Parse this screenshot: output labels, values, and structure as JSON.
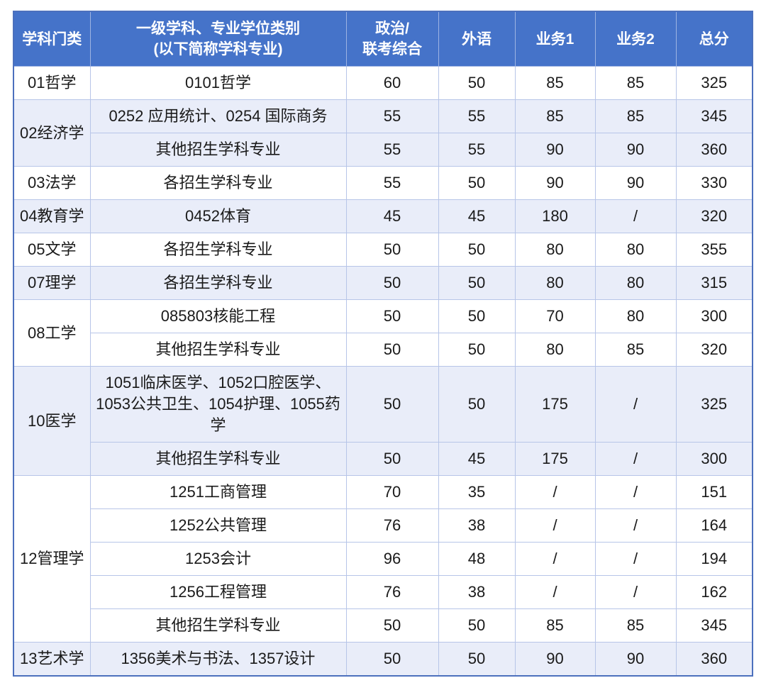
{
  "table": {
    "columns": [
      {
        "key": "category",
        "label": "学科门类"
      },
      {
        "key": "major",
        "label": "一级学科、专业学位类别\n(以下简称学科专业)"
      },
      {
        "key": "politics",
        "label": "政治/\n联考综合"
      },
      {
        "key": "foreign_language",
        "label": "外语"
      },
      {
        "key": "business1",
        "label": "业务1"
      },
      {
        "key": "business2",
        "label": "业务2"
      },
      {
        "key": "total",
        "label": "总分"
      }
    ],
    "groups": [
      {
        "category": "01哲学",
        "rows": [
          {
            "major": "0101哲学",
            "scores": [
              "60",
              "50",
              "85",
              "85",
              "325"
            ]
          }
        ]
      },
      {
        "category": "02经济学",
        "rows": [
          {
            "major": "0252 应用统计、0254 国际商务",
            "scores": [
              "55",
              "55",
              "85",
              "85",
              "345"
            ]
          },
          {
            "major": "其他招生学科专业",
            "scores": [
              "55",
              "55",
              "90",
              "90",
              "360"
            ]
          }
        ]
      },
      {
        "category": "03法学",
        "rows": [
          {
            "major": "各招生学科专业",
            "scores": [
              "55",
              "50",
              "90",
              "90",
              "330"
            ]
          }
        ]
      },
      {
        "category": "04教育学",
        "rows": [
          {
            "major": "0452体育",
            "scores": [
              "45",
              "45",
              "180",
              "/",
              "320"
            ]
          }
        ]
      },
      {
        "category": "05文学",
        "rows": [
          {
            "major": "各招生学科专业",
            "scores": [
              "50",
              "50",
              "80",
              "80",
              "355"
            ]
          }
        ]
      },
      {
        "category": "07理学",
        "rows": [
          {
            "major": "各招生学科专业",
            "scores": [
              "50",
              "50",
              "80",
              "80",
              "315"
            ]
          }
        ]
      },
      {
        "category": "08工学",
        "rows": [
          {
            "major": "085803核能工程",
            "scores": [
              "50",
              "50",
              "70",
              "80",
              "300"
            ]
          },
          {
            "major": "其他招生学科专业",
            "scores": [
              "50",
              "50",
              "80",
              "85",
              "320"
            ]
          }
        ]
      },
      {
        "category": "10医学",
        "rows": [
          {
            "major": "1051临床医学、1052口腔医学、1053公共卫生、1054护理、1055药学",
            "scores": [
              "50",
              "50",
              "175",
              "/",
              "325"
            ]
          },
          {
            "major": "其他招生学科专业",
            "scores": [
              "50",
              "45",
              "175",
              "/",
              "300"
            ]
          }
        ]
      },
      {
        "category": "12管理学",
        "rows": [
          {
            "major": "1251工商管理",
            "scores": [
              "70",
              "35",
              "/",
              "/",
              "151"
            ]
          },
          {
            "major": "1252公共管理",
            "scores": [
              "76",
              "38",
              "/",
              "/",
              "164"
            ]
          },
          {
            "major": "1253会计",
            "scores": [
              "96",
              "48",
              "/",
              "/",
              "194"
            ]
          },
          {
            "major": "1256工程管理",
            "scores": [
              "76",
              "38",
              "/",
              "/",
              "162"
            ]
          },
          {
            "major": "其他招生学科专业",
            "scores": [
              "50",
              "50",
              "85",
              "85",
              "345"
            ]
          }
        ]
      },
      {
        "category": "13艺术学",
        "rows": [
          {
            "major": "1356美术与书法、1357设计",
            "scores": [
              "50",
              "50",
              "90",
              "90",
              "360"
            ]
          }
        ]
      }
    ],
    "colors": {
      "header_bg": "#4573c9",
      "header_text": "#ffffff",
      "row_alt_bg": "#e9edf9",
      "grid_line": "#b7c5e8",
      "outer_border": "#4c70bd"
    }
  }
}
